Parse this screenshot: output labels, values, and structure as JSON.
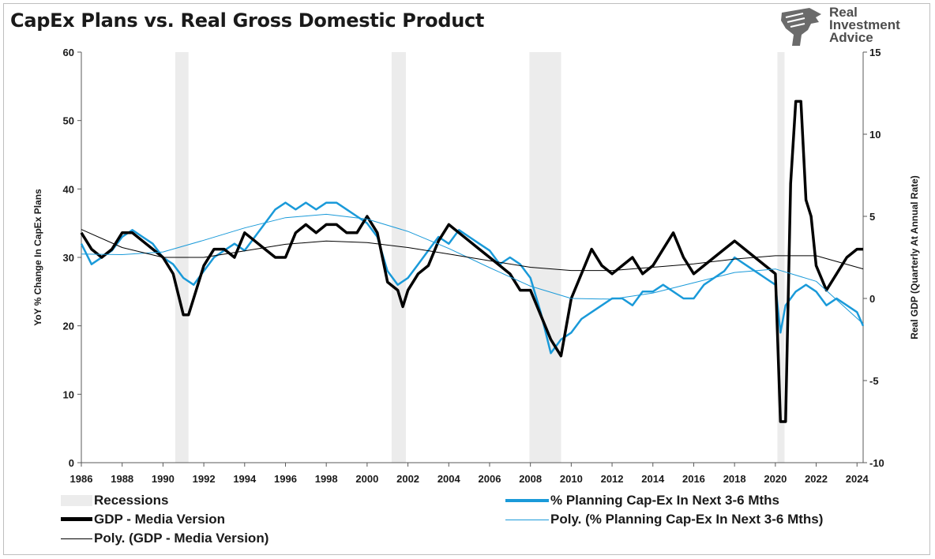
{
  "title": "CapEx Plans vs. Real Gross Domestic Product",
  "logo": {
    "lines": [
      "Real",
      "Investment",
      "Advice"
    ],
    "icon": "eagle-head-icon"
  },
  "colors": {
    "gdp": "#000000",
    "capex": "#1a9ad9",
    "recession": "#ececec",
    "axis": "#595959"
  },
  "legend": {
    "recessions": "Recessions",
    "capex": "% Planning Cap-Ex In Next 3-6 Mths",
    "gdp": "GDP - Media Version",
    "poly_capex": "Poly. (% Planning Cap-Ex In Next 3-6 Mths)",
    "poly_gdp": "Poly. (GDP - Media Version)"
  },
  "chart_data": {
    "type": "line",
    "title": "CapEx Plans vs. Real Gross Domestic Product",
    "ylabel_left": "YoY % Change In CapEx Plans",
    "ylabel_right": "Real GDP (Quarterly At Annual Rate)",
    "xlim": [
      1986,
      2024.3
    ],
    "ylim_left": [
      0,
      60
    ],
    "ylim_right": [
      -10,
      15
    ],
    "yticks_left": [
      "0",
      "10",
      "20",
      "30",
      "40",
      "50",
      "60"
    ],
    "yticks_right": [
      "-10",
      "-5",
      "0",
      "5",
      "10",
      "15"
    ],
    "xticks": [
      "1986",
      "1988",
      "1990",
      "1992",
      "1994",
      "1996",
      "1998",
      "2000",
      "2002",
      "2004",
      "2006",
      "2008",
      "2010",
      "2012",
      "2014",
      "2016",
      "2018",
      "2020",
      "2022",
      "2024"
    ],
    "recessions": [
      [
        1990.6,
        1991.25
      ],
      [
        2001.2,
        2001.9
      ],
      [
        2007.95,
        2009.5
      ],
      [
        2020.1,
        2020.45
      ]
    ],
    "series": [
      {
        "name": "% Planning Cap-Ex In Next 3-6 Mths",
        "axis": "left",
        "x": [
          1986,
          1986.5,
          1987,
          1987.5,
          1988,
          1988.5,
          1989,
          1989.5,
          1990,
          1990.5,
          1991,
          1991.5,
          1992,
          1992.5,
          1993,
          1993.5,
          1994,
          1994.5,
          1995,
          1995.5,
          1996,
          1996.5,
          1997,
          1997.5,
          1998,
          1998.5,
          1999,
          1999.5,
          2000,
          2000.5,
          2001,
          2001.5,
          2002,
          2002.5,
          2003,
          2003.5,
          2004,
          2004.5,
          2005,
          2005.5,
          2006,
          2006.5,
          2007,
          2007.5,
          2008,
          2008.5,
          2009,
          2009.5,
          2010,
          2010.5,
          2011,
          2011.5,
          2012,
          2012.5,
          2013,
          2013.5,
          2014,
          2014.5,
          2015,
          2015.5,
          2016,
          2016.5,
          2017,
          2017.5,
          2018,
          2018.5,
          2019,
          2019.5,
          2020,
          2020.25,
          2020.5,
          2021,
          2021.5,
          2022,
          2022.5,
          2023,
          2023.5,
          2024,
          2024.3
        ],
        "values": [
          32,
          29,
          30,
          31,
          33,
          34,
          33,
          32,
          30,
          29,
          27,
          26,
          28,
          30,
          31,
          32,
          31,
          33,
          35,
          37,
          38,
          37,
          38,
          37,
          38,
          38,
          37,
          36,
          35,
          33,
          28,
          26,
          27,
          29,
          31,
          33,
          32,
          34,
          33,
          32,
          31,
          29,
          30,
          29,
          27,
          22,
          16,
          18,
          19,
          21,
          22,
          23,
          24,
          24,
          23,
          25,
          25,
          26,
          25,
          24,
          24,
          26,
          27,
          28,
          30,
          29,
          28,
          27,
          26,
          19,
          23,
          25,
          26,
          25,
          23,
          24,
          23,
          22,
          20
        ]
      },
      {
        "name": "GDP - Media Version",
        "axis": "right",
        "x": [
          1986,
          1986.5,
          1987,
          1987.5,
          1988,
          1988.5,
          1989,
          1989.5,
          1990,
          1990.5,
          1991,
          1991.25,
          1991.5,
          1992,
          1992.5,
          1993,
          1993.5,
          1994,
          1994.5,
          1995,
          1995.5,
          1996,
          1996.5,
          1997,
          1997.5,
          1998,
          1998.5,
          1999,
          1999.5,
          2000,
          2000.5,
          2001,
          2001.5,
          2001.75,
          2002,
          2002.5,
          2003,
          2003.5,
          2004,
          2004.5,
          2005,
          2005.5,
          2006,
          2006.5,
          2007,
          2007.5,
          2008,
          2008.5,
          2009,
          2009.5,
          2010,
          2010.5,
          2011,
          2011.5,
          2012,
          2012.5,
          2013,
          2013.5,
          2014,
          2014.5,
          2015,
          2015.5,
          2016,
          2016.5,
          2017,
          2017.5,
          2018,
          2018.5,
          2019,
          2019.5,
          2020,
          2020.25,
          2020.5,
          2020.75,
          2021,
          2021.25,
          2021.5,
          2021.75,
          2022,
          2022.5,
          2023,
          2023.5,
          2024,
          2024.3
        ],
        "values": [
          4,
          3,
          2.5,
          3,
          4,
          4,
          3.5,
          3,
          2.5,
          1.5,
          -1,
          -1,
          0,
          2,
          3,
          3,
          2.5,
          4,
          3.5,
          3,
          2.5,
          2.5,
          4,
          4.5,
          4,
          4.5,
          4.5,
          4,
          4,
          5,
          4,
          1,
          0.5,
          -0.5,
          0.5,
          1.5,
          2,
          3.5,
          4.5,
          4,
          3.5,
          3,
          2.5,
          2,
          1.5,
          0.5,
          0.5,
          -1,
          -2.5,
          -3.5,
          0,
          1.5,
          3,
          2,
          1.5,
          2,
          2.5,
          1.5,
          2,
          3,
          4,
          2.5,
          1.5,
          2,
          2.5,
          3,
          3.5,
          3,
          2.5,
          2,
          1.5,
          -7.5,
          -7.5,
          7,
          12,
          12,
          6,
          5,
          2,
          0.5,
          1.5,
          2.5,
          3,
          3
        ]
      },
      {
        "name": "Poly. (% Planning Cap-Ex In Next 3-6 Mths)",
        "axis": "left",
        "x": [
          1986,
          1988,
          1990,
          1992,
          1994,
          1996,
          1998,
          2000,
          2002,
          2004,
          2006,
          2008,
          2010,
          2012,
          2014,
          2016,
          2018,
          2020,
          2022,
          2024.3
        ],
        "values": [
          30.5,
          30.4,
          30.8,
          32.5,
          34.3,
          35.8,
          36.3,
          35.6,
          33.8,
          31.3,
          28.5,
          25.8,
          24,
          23.9,
          24.8,
          26.3,
          27.8,
          28.3,
          26.5,
          20.3
        ]
      },
      {
        "name": "Poly. (GDP - Media Version)",
        "axis": "right",
        "x": [
          1986,
          1988,
          1990,
          1992,
          1994,
          1996,
          1998,
          2000,
          2002,
          2004,
          2006,
          2008,
          2010,
          2012,
          2014,
          2016,
          2018,
          2020,
          2022,
          2024.3
        ],
        "values": [
          4.2,
          3.1,
          2.5,
          2.5,
          2.9,
          3.3,
          3.5,
          3.4,
          3.1,
          2.7,
          2.3,
          1.9,
          1.7,
          1.7,
          1.9,
          2.1,
          2.4,
          2.6,
          2.6,
          1.8
        ]
      }
    ]
  }
}
